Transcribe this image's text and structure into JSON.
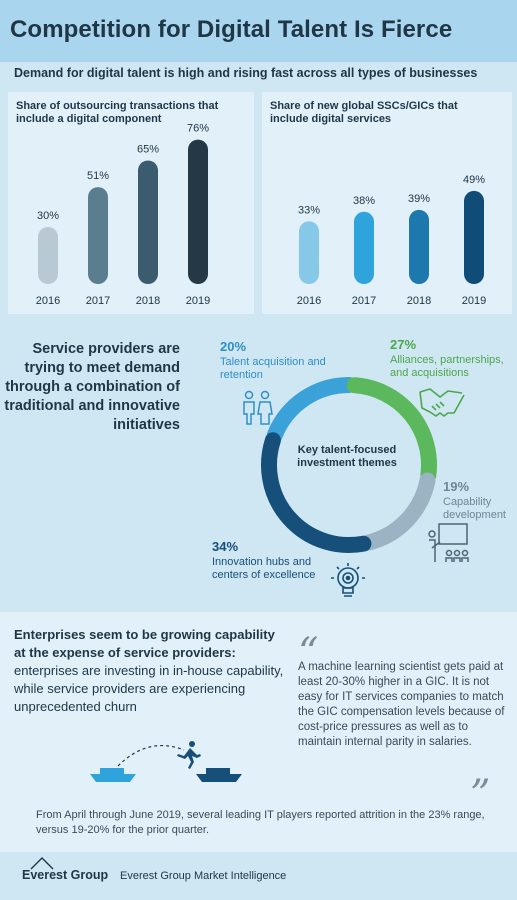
{
  "title": "Competition for Digital Talent Is Fierce",
  "subtitle": "Demand for digital talent is high and rising fast across all types of businesses",
  "chart_data": [
    {
      "type": "bar",
      "title": "Share of outsourcing transactions that include a digital component",
      "categories": [
        "2016",
        "2017",
        "2018",
        "2019"
      ],
      "values": [
        30,
        51,
        65,
        76
      ],
      "value_labels": [
        "30%",
        "51%",
        "65%",
        "76%"
      ],
      "colors": [
        "#b8c9d3",
        "#5b7d90",
        "#3b5b6e",
        "#243845"
      ]
    },
    {
      "type": "bar",
      "title": "Share of new global SSCs/GICs that include digital services",
      "categories": [
        "2016",
        "2017",
        "2018",
        "2019"
      ],
      "values": [
        33,
        38,
        39,
        49
      ],
      "value_labels": [
        "33%",
        "38%",
        "39%",
        "49%"
      ],
      "colors": [
        "#85c8e8",
        "#2ea3dc",
        "#1c78ad",
        "#0f4d78"
      ]
    },
    {
      "type": "pie",
      "title": "Key talent-focused investment themes",
      "slices": [
        {
          "label": "Talent acquisition and retention",
          "value": 20,
          "pct": "20%",
          "color": "#3aa2d8"
        },
        {
          "label": "Alliances, partnerships, and acquisitions",
          "value": 27,
          "pct": "27%",
          "color": "#5cb85c"
        },
        {
          "label": "Capability development",
          "value": 19,
          "pct": "19%",
          "color": "#9bb3c2"
        },
        {
          "label": "Innovation hubs and centers of excellence",
          "value": 34,
          "pct": "34%",
          "color": "#16507a"
        }
      ]
    }
  ],
  "ring": {
    "center_text": "Key talent-focused investment themes",
    "talent": {
      "pct": "20%",
      "label": "Talent acquisition and retention"
    },
    "alliances": {
      "pct": "27%",
      "label": "Alliances, partnerships, and acquisitions"
    },
    "capability": {
      "pct": "19%",
      "label": "Capability development"
    },
    "innovation": {
      "pct": "34%",
      "label": "Innovation hubs and centers of excellence"
    }
  },
  "mid_text": "Service providers are trying to meet demand through a combination of traditional and innovative initiatives",
  "enterprise": {
    "bold": "Enterprises seem to be growing capability at the expense of service providers:",
    "rest": " enterprises are investing in in-house capability, while service providers are experiencing unprecedented churn"
  },
  "quote": "A machine learning scientist gets paid at least 20-30% higher in a GIC. It is not easy for IT services companies to match the GIC compensation levels because of cost-price pressures as well as to maintain internal parity in salaries.",
  "footnote": "From April through June 2019, several leading IT players reported attrition in the 23% range, versus 19-20% for the prior quarter.",
  "footer": {
    "logo": "Everest Group",
    "text": "Everest Group Market Intelligence"
  },
  "icons": [
    "people-icon",
    "handshake-icon",
    "presentation-icon",
    "lightbulb-icon",
    "boat-icon",
    "jumping-person-icon",
    "quote-open-icon",
    "quote-close-icon",
    "mountain-logo-icon"
  ]
}
